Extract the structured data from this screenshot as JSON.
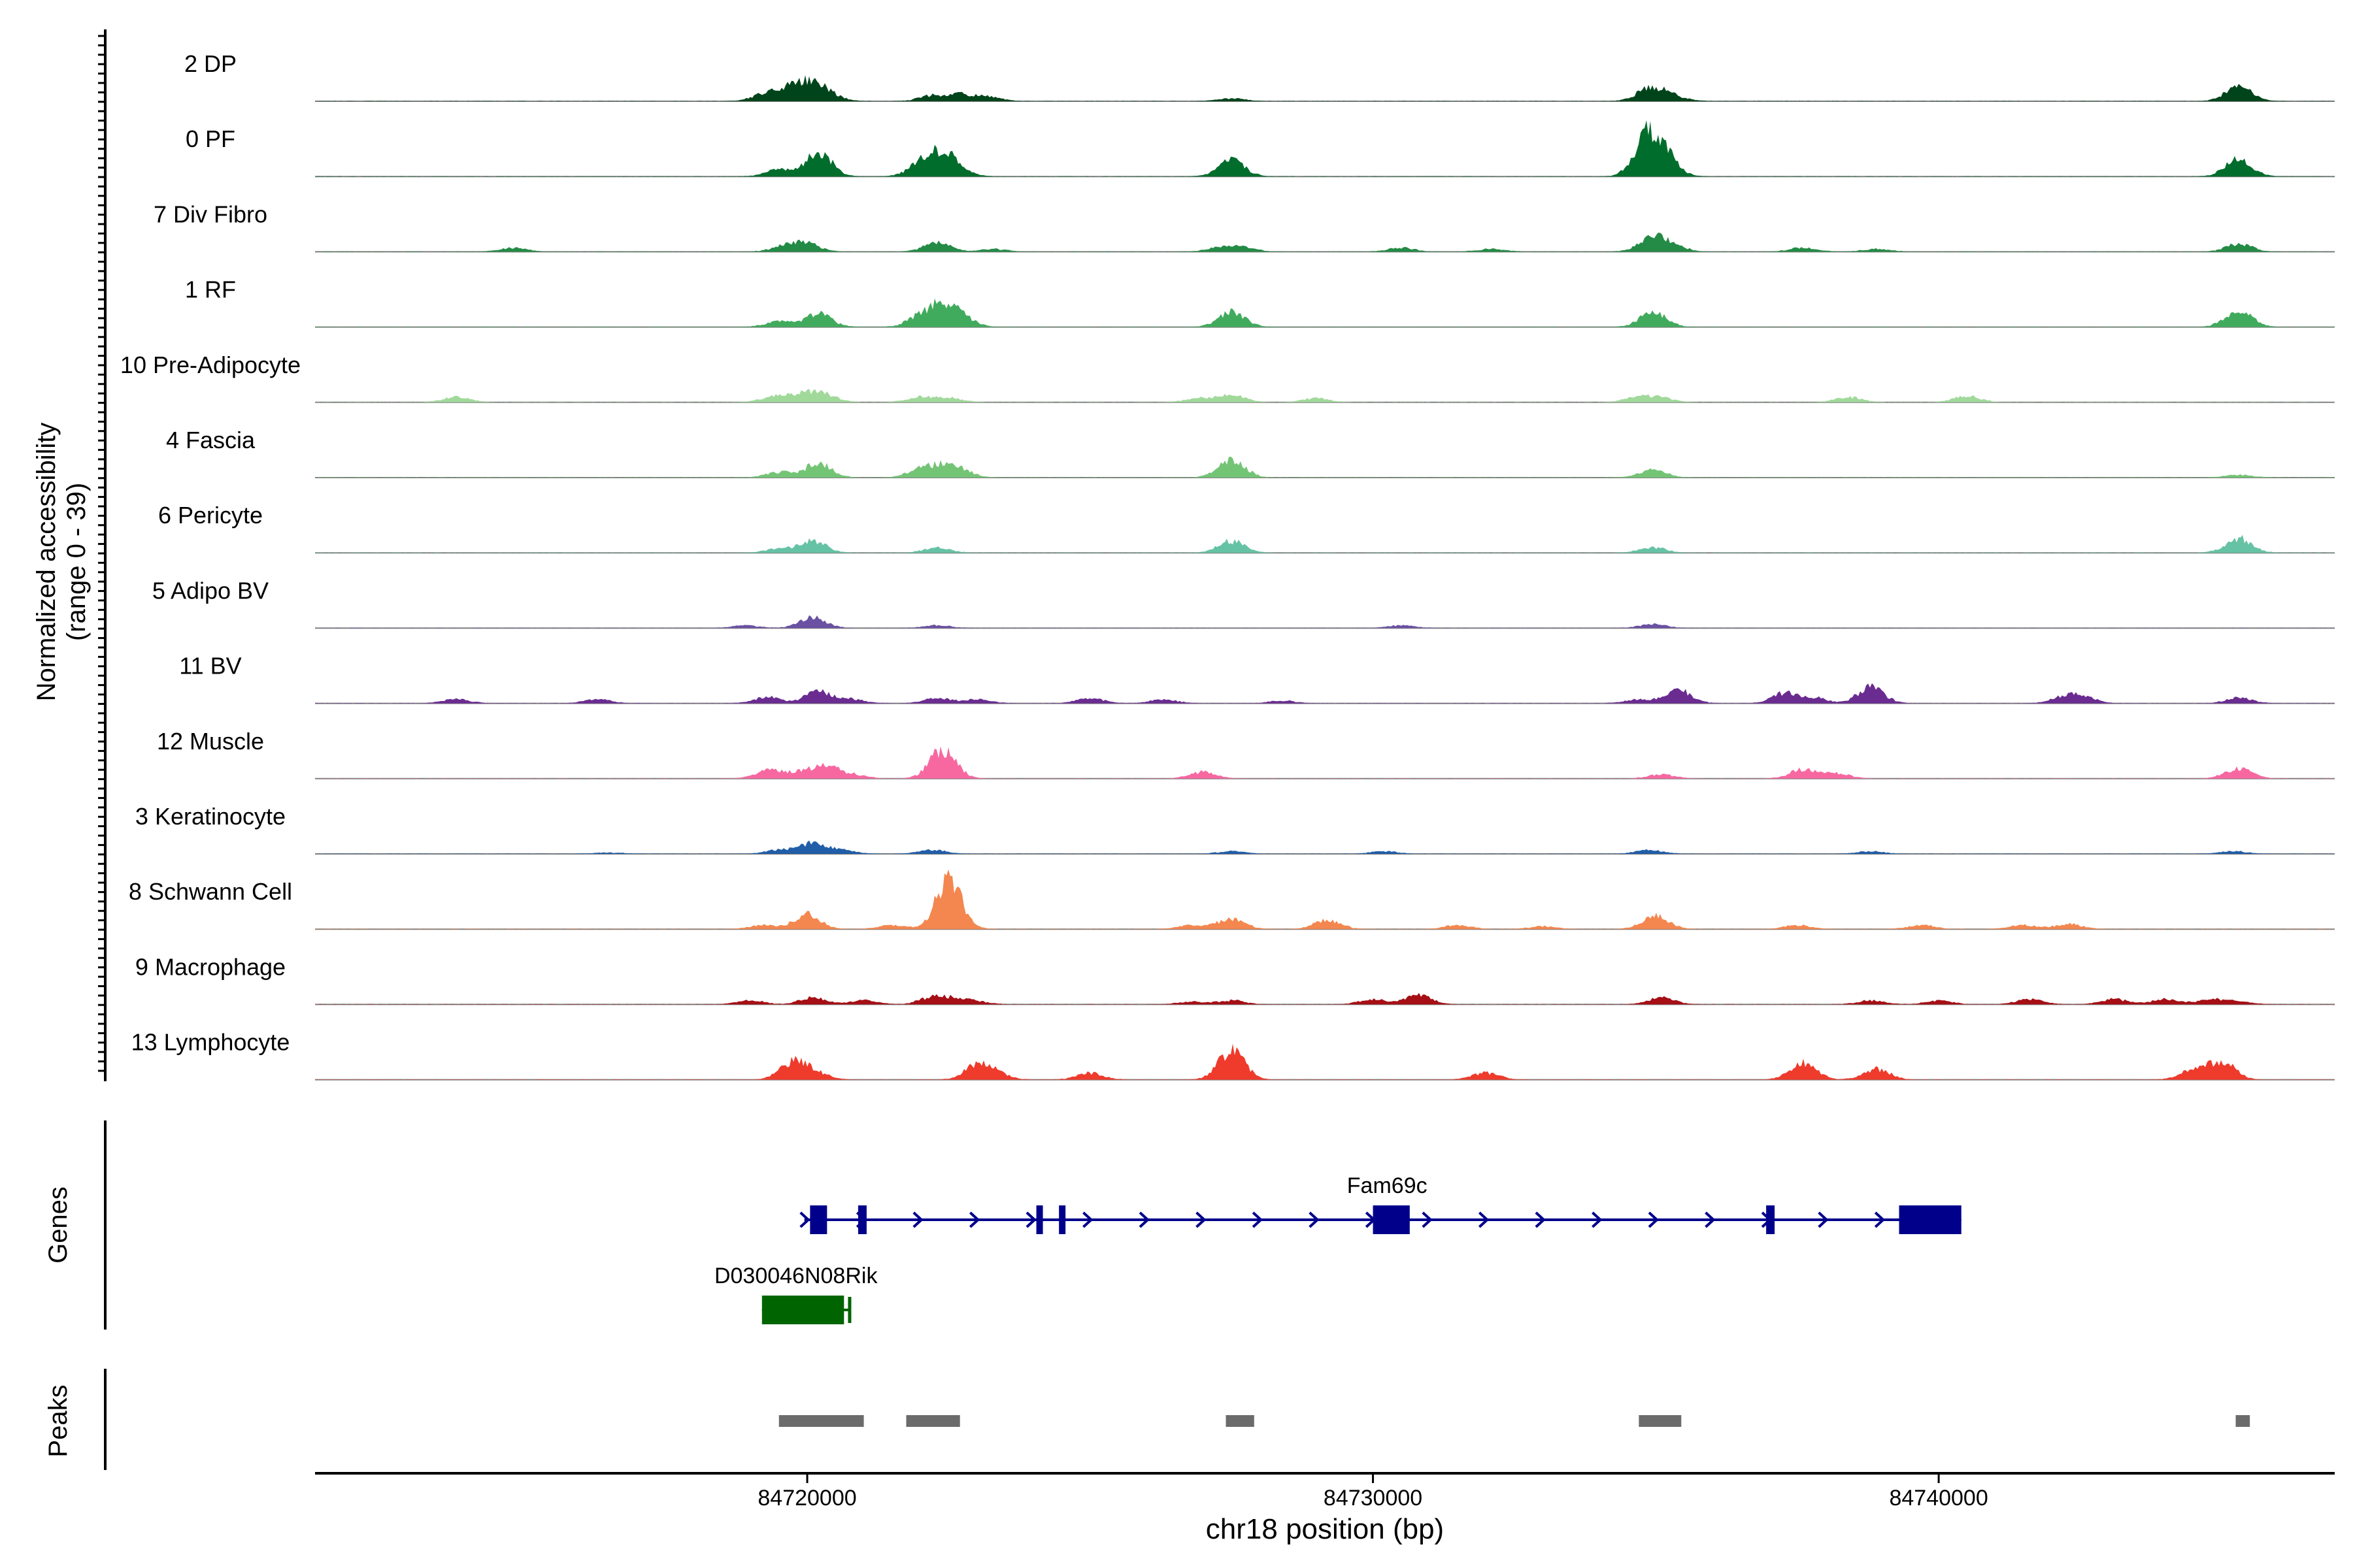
{
  "colors": {
    "axis": "#000000",
    "baseline": "#7f7f7f",
    "tick_label": "#4d4d4d",
    "gene_fam69c": "#00008b",
    "gene_d030": "#006400",
    "peak": "#6b6b6b"
  },
  "chart_data": {
    "type": "area",
    "title": "",
    "xlabel": "chr18 position (bp)",
    "ylabel": [
      "Normalized accessibility",
      "(range 0 - 39)"
    ],
    "xlim": [
      84711300,
      84747000
    ],
    "ylim": [
      0,
      39
    ],
    "xticks": [
      84720000,
      84730000,
      84740000
    ],
    "xtick_labels": [
      "84720000",
      "84730000",
      "84740000"
    ],
    "panel_labels": {
      "genes": "Genes",
      "peaks": "Peaks"
    },
    "tracks": [
      {
        "label": "2 DP",
        "color": "#00441b",
        "peaks": [
          [
            84719200,
            4
          ],
          [
            84719600,
            8
          ],
          [
            84720000,
            12
          ],
          [
            84720350,
            6
          ],
          [
            84722200,
            4
          ],
          [
            84722700,
            5
          ],
          [
            84723200,
            3
          ],
          [
            84727500,
            2
          ],
          [
            84734900,
            10
          ],
          [
            84735300,
            4
          ],
          [
            84745300,
            11
          ]
        ]
      },
      {
        "label": "0 PF",
        "color": "#006d2c",
        "peaks": [
          [
            84719500,
            5
          ],
          [
            84720200,
            18
          ],
          [
            84722000,
            8
          ],
          [
            84722300,
            12
          ],
          [
            84722600,
            9
          ],
          [
            84727500,
            12
          ],
          [
            84734850,
            28
          ],
          [
            84735150,
            14
          ],
          [
            84745300,
            13
          ]
        ]
      },
      {
        "label": "7 Div Fibro",
        "color": "#238b45",
        "peaks": [
          [
            84714800,
            3
          ],
          [
            84719600,
            4
          ],
          [
            84720000,
            6
          ],
          [
            84722300,
            7
          ],
          [
            84723300,
            2
          ],
          [
            84727300,
            3
          ],
          [
            84727700,
            3
          ],
          [
            84730500,
            3
          ],
          [
            84732100,
            2
          ],
          [
            84734900,
            9
          ],
          [
            84735250,
            6
          ],
          [
            84737600,
            3
          ],
          [
            84738900,
            2
          ],
          [
            84745300,
            6
          ]
        ]
      },
      {
        "label": "1 RF",
        "color": "#41ab5d",
        "peaks": [
          [
            84719500,
            4
          ],
          [
            84720200,
            10
          ],
          [
            84722000,
            8
          ],
          [
            84722400,
            14
          ],
          [
            84722700,
            8
          ],
          [
            84727500,
            12
          ],
          [
            84734950,
            11
          ],
          [
            84745300,
            13
          ]
        ]
      },
      {
        "label": "10 Pre-Adipocyte",
        "color": "#a1d99b",
        "peaks": [
          [
            84713800,
            4
          ],
          [
            84719400,
            4
          ],
          [
            84719900,
            6
          ],
          [
            84720300,
            6
          ],
          [
            84722000,
            4
          ],
          [
            84722500,
            3
          ],
          [
            84726900,
            3
          ],
          [
            84727500,
            6
          ],
          [
            84729000,
            3
          ],
          [
            84734700,
            4
          ],
          [
            84735100,
            3
          ],
          [
            84738400,
            4
          ],
          [
            84740500,
            5
          ]
        ]
      },
      {
        "label": "4 Fascia",
        "color": "#74c476",
        "peaks": [
          [
            84719500,
            4
          ],
          [
            84720200,
            11
          ],
          [
            84722000,
            6
          ],
          [
            84722400,
            7
          ],
          [
            84722700,
            5
          ],
          [
            84727500,
            14
          ],
          [
            84734950,
            6
          ],
          [
            84745300,
            2
          ]
        ]
      },
      {
        "label": "6 Pericyte",
        "color": "#66c2a4",
        "peaks": [
          [
            84719500,
            3
          ],
          [
            84720100,
            9
          ],
          [
            84722300,
            4
          ],
          [
            84727500,
            9
          ],
          [
            84734950,
            4
          ],
          [
            84745300,
            11
          ]
        ]
      },
      {
        "label": "5 Adipo BV",
        "color": "#6a51a3",
        "peaks": [
          [
            84718900,
            2
          ],
          [
            84720100,
            8
          ],
          [
            84722300,
            2
          ],
          [
            84730500,
            2
          ],
          [
            84734950,
            3
          ]
        ]
      },
      {
        "label": "11 BV",
        "color": "#6a2c91",
        "peaks": [
          [
            84713800,
            3
          ],
          [
            84716300,
            3
          ],
          [
            84719300,
            5
          ],
          [
            84720200,
            9
          ],
          [
            84720800,
            3
          ],
          [
            84722300,
            4
          ],
          [
            84723000,
            3
          ],
          [
            84725000,
            4
          ],
          [
            84726300,
            3
          ],
          [
            84728400,
            2
          ],
          [
            84734700,
            3
          ],
          [
            84735400,
            10
          ],
          [
            84737300,
            8
          ],
          [
            84737800,
            4
          ],
          [
            84738800,
            12
          ],
          [
            84742200,
            4
          ],
          [
            84742500,
            6
          ],
          [
            84745300,
            4
          ]
        ]
      },
      {
        "label": "12 Muscle",
        "color": "#f768a1",
        "peaks": [
          [
            84719300,
            6
          ],
          [
            84719800,
            4
          ],
          [
            84720300,
            10
          ],
          [
            84720800,
            3
          ],
          [
            84722400,
            22
          ],
          [
            84727000,
            5
          ],
          [
            84735100,
            3
          ],
          [
            84737600,
            7
          ],
          [
            84738200,
            4
          ],
          [
            84745300,
            8
          ]
        ]
      },
      {
        "label": "3 Keratinocyte",
        "color": "#225ea8",
        "peaks": [
          [
            84716500,
            1
          ],
          [
            84719500,
            3
          ],
          [
            84720100,
            8
          ],
          [
            84720600,
            3
          ],
          [
            84722200,
            3
          ],
          [
            84727500,
            2
          ],
          [
            84730200,
            2
          ],
          [
            84734900,
            3
          ],
          [
            84738800,
            2
          ],
          [
            84745200,
            2
          ]
        ]
      },
      {
        "label": "8 Schwann Cell",
        "color": "#f4874f",
        "peaks": [
          [
            84719200,
            3
          ],
          [
            84720000,
            11
          ],
          [
            84721500,
            3
          ],
          [
            84722500,
            36
          ],
          [
            84726800,
            3
          ],
          [
            84727500,
            8
          ],
          [
            84729200,
            7
          ],
          [
            84731500,
            3
          ],
          [
            84733000,
            2
          ],
          [
            84735000,
            10
          ],
          [
            84737500,
            3
          ],
          [
            84739700,
            3
          ],
          [
            84741500,
            3
          ],
          [
            84742300,
            4
          ]
        ]
      },
      {
        "label": "9 Macrophage",
        "color": "#a50f15",
        "peaks": [
          [
            84719000,
            3
          ],
          [
            84720100,
            5
          ],
          [
            84721000,
            3
          ],
          [
            84722200,
            5
          ],
          [
            84722600,
            4
          ],
          [
            84723000,
            2
          ],
          [
            84726800,
            2
          ],
          [
            84727500,
            3
          ],
          [
            84730000,
            4
          ],
          [
            84730800,
            7
          ],
          [
            84735100,
            5
          ],
          [
            84738800,
            3
          ],
          [
            84740000,
            3
          ],
          [
            84741600,
            4
          ],
          [
            84743100,
            4
          ],
          [
            84744000,
            4
          ],
          [
            84744800,
            4
          ],
          [
            84745300,
            2
          ]
        ]
      },
      {
        "label": "13 Lymphocyte",
        "color": "#ef3b2c",
        "peaks": [
          [
            84719750,
            13
          ],
          [
            84720150,
            5
          ],
          [
            84723000,
            10
          ],
          [
            84723300,
            5
          ],
          [
            84725000,
            5
          ],
          [
            84727500,
            22
          ],
          [
            84732000,
            5
          ],
          [
            84737600,
            13
          ],
          [
            84738900,
            8
          ],
          [
            84744500,
            7
          ],
          [
            84745000,
            14
          ]
        ]
      }
    ],
    "genes": [
      {
        "name": "Fam69c",
        "start": 84719950,
        "end": 84740400,
        "strand": "+",
        "color": "#00008b",
        "exons": [
          [
            84720050,
            84720350
          ],
          [
            84720900,
            84721050
          ],
          [
            84724050,
            84724150
          ],
          [
            84724450,
            84724550
          ],
          [
            84730000,
            84730650
          ],
          [
            84736950,
            84737100
          ],
          [
            84739300,
            84740400
          ]
        ]
      },
      {
        "name": "D030046N08Rik",
        "start": 84719200,
        "end": 84720750,
        "strand": "-",
        "color": "#006400",
        "exons": [
          [
            84719200,
            84720650
          ]
        ]
      }
    ],
    "peaks_regions": [
      [
        84719500,
        84721000
      ],
      [
        84721750,
        84722700
      ],
      [
        84727400,
        84727900
      ],
      [
        84734700,
        84735450
      ],
      [
        84745250,
        84745500
      ]
    ]
  }
}
